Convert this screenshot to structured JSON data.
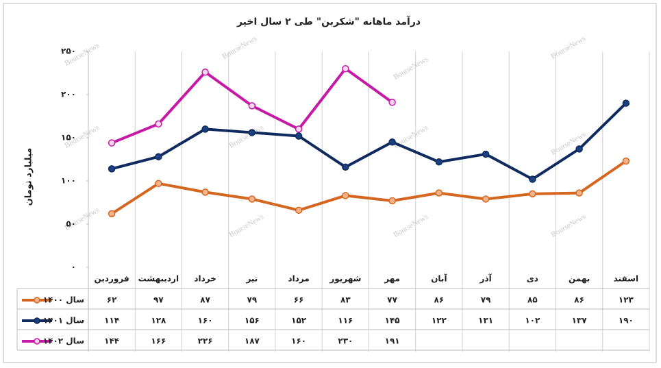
{
  "chart_data": {
    "type": "line",
    "title": "درآمد ماهانه \"شکربن\" طی ۲ سال اخیر",
    "y_label": "میلیارد تومان",
    "watermark": "BourseNews",
    "categories": [
      "فروردین",
      "اردیبهشت",
      "خرداد",
      "تیر",
      "مرداد",
      "شهریور",
      "مهر",
      "آبان",
      "آذر",
      "دی",
      "بهمن",
      "اسفند"
    ],
    "series": [
      {
        "name": "سال ۱۴۰۰",
        "color": "#d4661f",
        "marker_fill": "#f3b48a",
        "values": [
          62,
          97,
          87,
          79,
          66,
          83,
          77,
          86,
          79,
          85,
          86,
          123
        ],
        "value_labels": [
          "۶۲",
          "۹۷",
          "۸۷",
          "۷۹",
          "۶۶",
          "۸۳",
          "۷۷",
          "۸۶",
          "۷۹",
          "۸۵",
          "۸۶",
          "۱۲۳"
        ]
      },
      {
        "name": "سال ۱۴۰۱",
        "color": "#0e2a5e",
        "marker_fill": "#1c3f80",
        "values": [
          114,
          128,
          160,
          156,
          152,
          116,
          145,
          122,
          131,
          102,
          137,
          190
        ],
        "value_labels": [
          "۱۱۴",
          "۱۲۸",
          "۱۶۰",
          "۱۵۶",
          "۱۵۲",
          "۱۱۶",
          "۱۴۵",
          "۱۲۲",
          "۱۳۱",
          "۱۰۲",
          "۱۳۷",
          "۱۹۰"
        ]
      },
      {
        "name": "سال ۱۴۰۲",
        "color": "#c41aa5",
        "marker_fill": "#f6d6ef",
        "values": [
          144,
          166,
          226,
          187,
          160,
          230,
          191,
          null,
          null,
          null,
          null,
          null
        ],
        "value_labels": [
          "۱۴۴",
          "۱۶۶",
          "۲۲۶",
          "۱۸۷",
          "۱۶۰",
          "۲۳۰",
          "۱۹۱",
          null,
          null,
          null,
          null,
          null
        ]
      }
    ],
    "ylim": [
      0,
      250
    ],
    "yticks": [
      {
        "value": 0,
        "label": "۰"
      },
      {
        "value": 50,
        "label": "۵۰"
      },
      {
        "value": 100,
        "label": "۱۰۰"
      },
      {
        "value": 150,
        "label": "۱۵۰"
      },
      {
        "value": 200,
        "label": "۲۰۰"
      },
      {
        "value": 250,
        "label": "۲۵۰"
      }
    ],
    "grid": "vertical"
  }
}
